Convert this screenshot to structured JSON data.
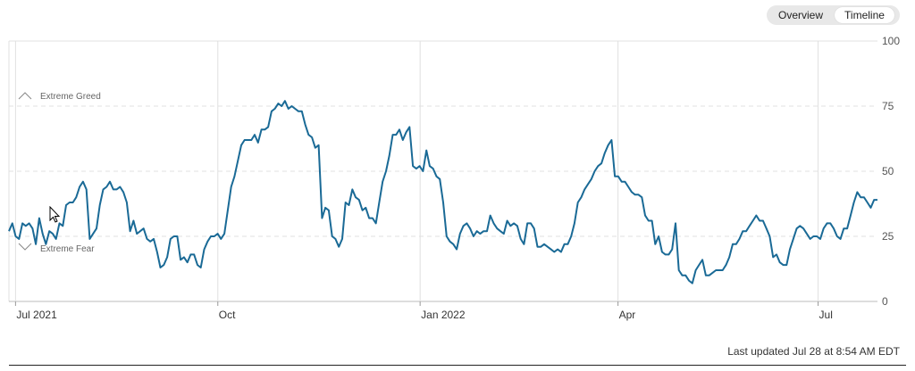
{
  "toggle": {
    "overview_label": "Overview",
    "timeline_label": "Timeline",
    "selected": "Timeline"
  },
  "footer": {
    "last_updated": "Last updated Jul 28 at 8:54 AM EDT"
  },
  "colors": {
    "line": "#1a6a96",
    "grid": "#e0e0e0",
    "band_marker": "#888888"
  },
  "chart_data": {
    "type": "line",
    "title": "",
    "xlabel": "",
    "ylabel": "",
    "ylim": [
      0,
      100
    ],
    "grid": true,
    "y_ticks": [
      "100",
      "75",
      "50",
      "25",
      "0"
    ],
    "x_ticks": [
      "Jul 2021",
      "Oct",
      "Jan 2022",
      "Apr",
      "Jul"
    ],
    "annotations": [
      "Extreme Greed",
      "Extreme Fear"
    ],
    "series": [
      {
        "name": "",
        "x_start": "2021-06-28",
        "x_end": "2022-07-28",
        "values": [
          27,
          30,
          25,
          24,
          30,
          29,
          30,
          28,
          22,
          32,
          26,
          22,
          27,
          26,
          24,
          30,
          29,
          37,
          38,
          38,
          40,
          44,
          46,
          43,
          24,
          26,
          28,
          37,
          43,
          44,
          46,
          43,
          43,
          44,
          42,
          38,
          27,
          31,
          26,
          27,
          28,
          24,
          23,
          24,
          19,
          13,
          14,
          17,
          24,
          25,
          25,
          16,
          17,
          15,
          18,
          18,
          14,
          13,
          20,
          23,
          25,
          25,
          26,
          24,
          26,
          35,
          44,
          48,
          54,
          60,
          62,
          62,
          62,
          64,
          61,
          66,
          66,
          67,
          73,
          74,
          76,
          75,
          77,
          74,
          75,
          74,
          73,
          73,
          68,
          64,
          63,
          59,
          60,
          32,
          36,
          35,
          25,
          24,
          21,
          24,
          38,
          37,
          43,
          40,
          39,
          35,
          36,
          32,
          32,
          30,
          38,
          46,
          50,
          56,
          64,
          64,
          66,
          62,
          65,
          67,
          52,
          51,
          52,
          50,
          58,
          52,
          51,
          48,
          47,
          38,
          25,
          23,
          22,
          20,
          26,
          29,
          30,
          28,
          25,
          27,
          26,
          27,
          27,
          33,
          30,
          28,
          27,
          26,
          31,
          29,
          30,
          29,
          24,
          22,
          30,
          30,
          28,
          21,
          21,
          22,
          21,
          20,
          19,
          20,
          19,
          22,
          22,
          25,
          30,
          38,
          40,
          43,
          45,
          47,
          50,
          52,
          53,
          57,
          60,
          62,
          48,
          48,
          46,
          46,
          44,
          42,
          41,
          41,
          40,
          33,
          31,
          31,
          22,
          25,
          19,
          18,
          18,
          20,
          30,
          12,
          10,
          10,
          8,
          7,
          12,
          14,
          16,
          10,
          10,
          11,
          12,
          12,
          12,
          14,
          17,
          22,
          22,
          24,
          27,
          27,
          29,
          31,
          33,
          31,
          31,
          28,
          25,
          17,
          18,
          15,
          14,
          14,
          20,
          24,
          28,
          29,
          28,
          26,
          24,
          25,
          25,
          24,
          28,
          30,
          30,
          28,
          25,
          24,
          28,
          28,
          33,
          38,
          42,
          40,
          40,
          38,
          36,
          39,
          39
        ]
      }
    ]
  }
}
